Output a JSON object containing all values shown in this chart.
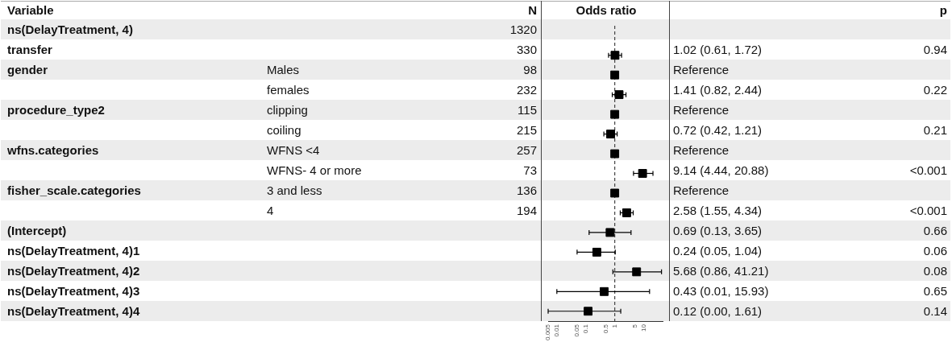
{
  "chart_data": {
    "type": "scatter",
    "orientation": "horizontal",
    "xlabel": "Odds ratio",
    "log": "x",
    "marker": "square",
    "color": "#000000",
    "categories": [
      null,
      null,
      null,
      null,
      null,
      null,
      null,
      null,
      null,
      null,
      null,
      null,
      null,
      null,
      null
    ],
    "values": [
      null,
      1.02,
      1,
      1.41,
      1,
      0.72,
      1,
      9.14,
      1,
      2.58,
      0.69,
      0.24,
      5.68,
      0.43,
      0.12
    ],
    "errors": [
      null,
      [
        0.61,
        1.72
      ],
      null,
      [
        0.82,
        2.44
      ],
      null,
      [
        0.42,
        1.21
      ],
      null,
      [
        4.44,
        20.88
      ],
      null,
      [
        1.55,
        4.34
      ],
      [
        0.13,
        3.65
      ],
      [
        0.05,
        1.04
      ],
      [
        0.86,
        41.21
      ],
      [
        0.01,
        15.93
      ],
      [
        0.005,
        1.61
      ]
    ],
    "xlim": [
      0.005,
      45
    ],
    "xticks": [
      0.005,
      0.01,
      0.05,
      0.1,
      0.5,
      1,
      5,
      10
    ],
    "ref_lines": [
      {
        "axis": "x",
        "value": 1,
        "line_style": "dashed"
      }
    ],
    "cell_labels": [
      [
        "Variable",
        null,
        "N",
        null,
        "p"
      ],
      [
        "ns(DelayTreatment, 4)",
        null,
        "1320",
        null,
        null
      ],
      [
        "transfer",
        null,
        "330",
        "1.02 (0.61, 1.72)",
        "0.94"
      ],
      [
        "gender",
        "Males",
        "98",
        "Reference",
        null
      ],
      [
        null,
        "females",
        "232",
        "1.41 (0.82, 2.44)",
        "0.22"
      ],
      [
        "procedure_type2",
        "clipping",
        "115",
        "Reference",
        null
      ],
      [
        null,
        "coiling",
        "215",
        "0.72 (0.42, 1.21)",
        "0.21"
      ],
      [
        "wfns.categories",
        "WFNS <4",
        "257",
        "Reference",
        null
      ],
      [
        null,
        "WFNS- 4 or more",
        "73",
        "9.14 (4.44, 20.88)",
        "<0.001"
      ],
      [
        "fisher_scale.categories",
        "3 and less",
        "136",
        "Reference",
        null
      ],
      [
        null,
        "4",
        "194",
        "2.58 (1.55, 4.34)",
        "<0.001"
      ],
      [
        "(Intercept)",
        null,
        null,
        "0.69 (0.13, 3.65)",
        "0.66"
      ],
      [
        "ns(DelayTreatment, 4)1",
        null,
        null,
        "0.24 (0.05, 1.04)",
        "0.06"
      ],
      [
        "ns(DelayTreatment, 4)2",
        null,
        null,
        "5.68 (0.86, 41.21)",
        "0.08"
      ],
      [
        "ns(DelayTreatment, 4)3",
        null,
        null,
        "0.43 (0.01, 15.93)",
        "0.65"
      ],
      [
        "ns(DelayTreatment, 4)4",
        null,
        null,
        "0.12 (0.00, 1.61)",
        "0.14"
      ]
    ]
  }
}
